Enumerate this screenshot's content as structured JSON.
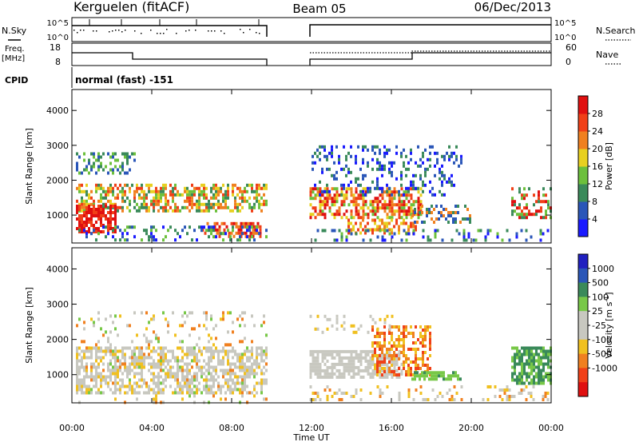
{
  "header": {
    "station": "Kerguelen (fitACF)",
    "beam": "Beam 05",
    "date": "06/Dec/2013"
  },
  "nsky_panel": {
    "left_label": "N.Sky",
    "left_ticks": [
      "10^5",
      "10^0"
    ],
    "right_label": "N.Search",
    "right_ticks": [
      "10^5",
      "10^0"
    ]
  },
  "freq_panel": {
    "left_label_line1": "Freq.",
    "left_label_line2": "[MHz]",
    "left_ticks": [
      "18",
      "8"
    ],
    "right_label": "Nave",
    "right_ticks": [
      "60",
      "0"
    ]
  },
  "cpid": {
    "label": "CPID",
    "value": "normal (fast) -151"
  },
  "colors": {
    "power": [
      "#1a1aff",
      "#2a56b8",
      "#3a8a5a",
      "#6cc03c",
      "#e8d020",
      "#f08020",
      "#f04018",
      "#e01010"
    ],
    "velocity": [
      "#e01010",
      "#f04018",
      "#f08020",
      "#f0c020",
      "#c8c8c0",
      "#c8c8c0",
      "#78c848",
      "#3a8a5a",
      "#2a56b8",
      "#2020c0"
    ]
  },
  "chart_data": [
    {
      "type": "heatmap",
      "name": "power",
      "ylabel": "Slant Range [km]",
      "ylim": [
        200,
        4600
      ],
      "y_ticks": [
        "1000",
        "2000",
        "3000",
        "4000"
      ],
      "xlim_hours": [
        0,
        24
      ],
      "x_ticks": [
        "00:00",
        "04:00",
        "08:00",
        "12:00",
        "16:00",
        "20:00",
        "00:00"
      ],
      "colorbar_label": "Power [dB]",
      "colorbar_ticks": [
        "4",
        "8",
        "12",
        "16",
        "20",
        "24",
        "28"
      ],
      "colorbar_range": [
        0,
        32
      ],
      "data_gap_hours": [
        9.8,
        11.9
      ]
    },
    {
      "type": "heatmap",
      "name": "velocity",
      "ylabel": "Slant Range [km]",
      "ylim": [
        200,
        4600
      ],
      "y_ticks": [
        "1000",
        "2000",
        "3000",
        "4000"
      ],
      "xlim_hours": [
        0,
        24
      ],
      "x_ticks": [
        "00:00",
        "04:00",
        "08:00",
        "12:00",
        "16:00",
        "20:00",
        "00:00"
      ],
      "xlabel": "Time UT",
      "colorbar_label": "Velocity [m s",
      "colorbar_label_sup": "-1",
      "colorbar_label_end": "]",
      "colorbar_ticks": [
        "1000",
        "500",
        "100",
        "25",
        "-25",
        "-100",
        "-500",
        "-1000"
      ],
      "data_gap_hours": [
        9.8,
        11.9
      ]
    }
  ]
}
